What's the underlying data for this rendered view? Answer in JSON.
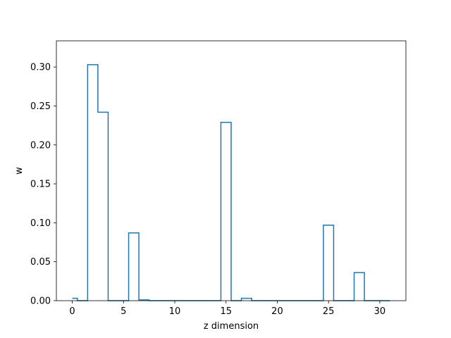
{
  "chart_data": {
    "type": "step",
    "title": "",
    "xlabel": "z dimension",
    "ylabel": "w",
    "xlim": [
      -1.55,
      32.55
    ],
    "ylim": [
      0,
      0.3336
    ],
    "xticks": [
      0,
      5,
      10,
      15,
      20,
      25,
      30
    ],
    "yticks": [
      0.0,
      0.05,
      0.1,
      0.15,
      0.2,
      0.25,
      0.3
    ],
    "xtick_labels": [
      "0",
      "5",
      "10",
      "15",
      "20",
      "25",
      "30"
    ],
    "ytick_labels": [
      "0.00",
      "0.05",
      "0.10",
      "0.15",
      "0.20",
      "0.25",
      "0.30"
    ],
    "grid": false,
    "color": "#1f77b4",
    "x": [
      0,
      1,
      2,
      3,
      4,
      5,
      6,
      7,
      8,
      9,
      10,
      11,
      12,
      13,
      14,
      15,
      16,
      17,
      18,
      19,
      20,
      21,
      22,
      23,
      24,
      25,
      26,
      27,
      28,
      29,
      30,
      31
    ],
    "values": [
      0.003,
      0.0,
      0.303,
      0.242,
      0.0,
      0.0,
      0.087,
      0.001,
      0.0,
      0.0,
      0.0,
      0.0,
      0.0,
      0.0,
      0.0,
      0.229,
      0.0,
      0.003,
      0.0,
      0.0,
      0.0,
      0.0,
      0.0,
      0.0,
      0.0,
      0.097,
      0.0,
      0.0,
      0.036,
      0.0,
      0.0,
      0.0
    ]
  }
}
